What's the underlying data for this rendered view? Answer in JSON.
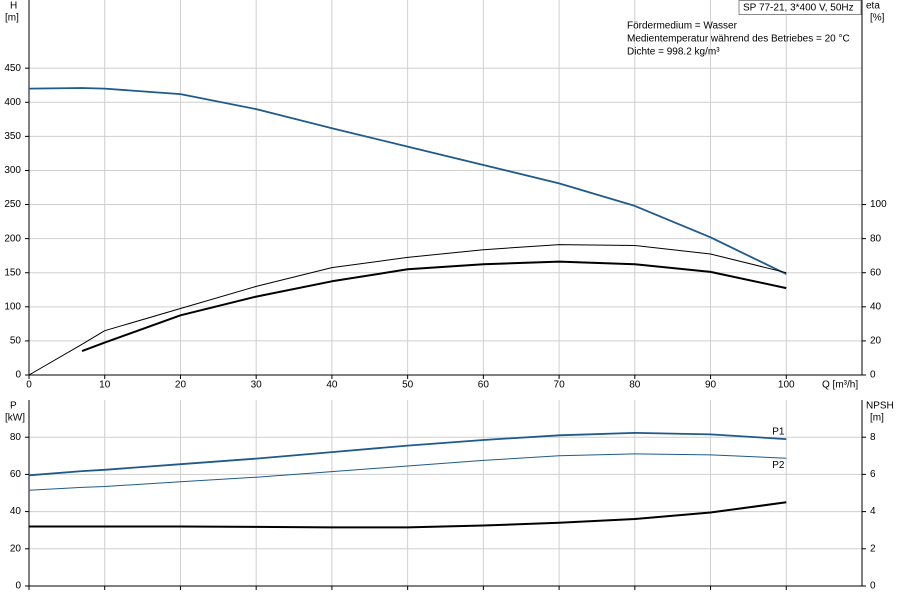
{
  "chart_data": [
    {
      "type": "line",
      "model": "SP 77-21, 3*400 V, 50Hz",
      "notes": [
        "Fördermedium = Wasser",
        "Medientemperatur während des Betriebes = 20 °C",
        "Dichte = 998.2 kg/m³"
      ],
      "ylabel": "H",
      "yunit": "[m]",
      "y2label": "eta",
      "y2unit": "[%]",
      "xlabel": "Q [m³/h]",
      "x": [
        0,
        7,
        10,
        20,
        30,
        40,
        50,
        60,
        70,
        80,
        90,
        100
      ],
      "xlim": [
        0,
        110
      ],
      "xticks": [
        0,
        10,
        20,
        30,
        40,
        50,
        60,
        70,
        80,
        90,
        100
      ],
      "xtick_labels": true,
      "ylim": [
        0,
        550
      ],
      "yticks": [
        0,
        50,
        100,
        150,
        200,
        250,
        300,
        350,
        400,
        450
      ],
      "y2lim": [
        0,
        220
      ],
      "y2ticks": [
        0,
        20,
        40,
        60,
        80,
        100
      ],
      "grid": true,
      "series": [
        {
          "color": "#1f5a8c",
          "width": 1.8,
          "values": [
            420,
            421,
            420,
            412,
            390,
            362,
            335,
            308,
            281,
            248,
            202,
            148
          ]
        },
        {
          "color": "#000000",
          "width": 1,
          "axis": "y2",
          "values": [
            0,
            18,
            26,
            39,
            52,
            63,
            69,
            73.5,
            76.5,
            76,
            71,
            60
          ]
        },
        {
          "color": "#000000",
          "width": 2,
          "axis": "y2",
          "values": [
            null,
            14,
            19,
            35,
            46,
            55,
            62,
            65,
            66.5,
            65,
            60.5,
            51
          ]
        }
      ]
    },
    {
      "type": "line",
      "ylabel": "P",
      "yunit": "[kW]",
      "y2label": "NPSH",
      "y2unit": "[m]",
      "x": [
        0,
        7,
        10,
        20,
        30,
        40,
        50,
        60,
        70,
        80,
        90,
        100
      ],
      "xlim": [
        0,
        110
      ],
      "xticks": [
        0,
        10,
        20,
        30,
        40,
        50,
        60,
        70,
        80,
        90,
        100
      ],
      "xtick_labels": false,
      "ylim": [
        0,
        100
      ],
      "yticks": [
        0,
        20,
        40,
        60,
        80
      ],
      "y2lim": [
        0,
        10
      ],
      "y2ticks": [
        0,
        2,
        4,
        6,
        8
      ],
      "grid": true,
      "series": [
        {
          "name": "P1",
          "color": "#1f5a8c",
          "width": 1.8,
          "values": [
            59.5,
            61.8,
            62.5,
            65.5,
            68.5,
            72,
            75.5,
            78.5,
            81,
            82.3,
            81.5,
            79
          ]
        },
        {
          "name": "P2",
          "color": "#1f5a8c",
          "width": 1,
          "values": [
            51.5,
            53,
            53.5,
            56,
            58.5,
            61.5,
            64.5,
            67.5,
            70,
            71,
            70.5,
            68.7
          ]
        },
        {
          "color": "#000000",
          "width": 2,
          "axis": "y2",
          "values": [
            3.2,
            3.2,
            3.2,
            3.2,
            3.18,
            3.15,
            3.15,
            3.25,
            3.4,
            3.6,
            3.95,
            4.5
          ]
        }
      ]
    }
  ]
}
